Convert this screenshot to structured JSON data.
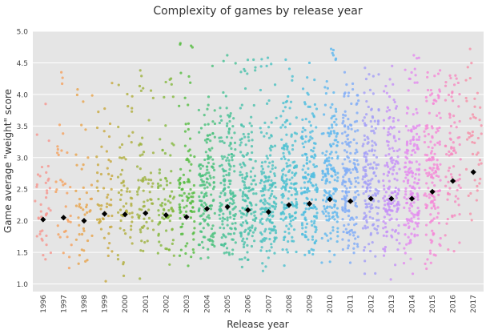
{
  "chart_data": {
    "type": "scatter",
    "title": "Complexity of games by release year",
    "xlabel": "Release year",
    "ylabel": "Game average \"weight\" score",
    "categories": [
      "1996",
      "1997",
      "1998",
      "1999",
      "2000",
      "2001",
      "2002",
      "2003",
      "2004",
      "2005",
      "2006",
      "2007",
      "2008",
      "2009",
      "2010",
      "2011",
      "2012",
      "2013",
      "2014",
      "2015",
      "2016",
      "2017"
    ],
    "y_ticks": [
      "1.0",
      "1.5",
      "2.0",
      "2.5",
      "3.0",
      "3.5",
      "4.0",
      "4.5",
      "5.0"
    ],
    "ylim": [
      0.88,
      5.0
    ],
    "grid": true,
    "mean_marker": "black diamond",
    "means": [
      2.02,
      2.05,
      2.0,
      2.11,
      2.1,
      2.12,
      2.09,
      2.06,
      2.19,
      2.22,
      2.17,
      2.14,
      2.25,
      2.27,
      2.34,
      2.31,
      2.35,
      2.35,
      2.35,
      2.46,
      2.63,
      2.77
    ],
    "point_counts": [
      40,
      35,
      45,
      55,
      60,
      70,
      80,
      100,
      150,
      160,
      160,
      165,
      165,
      165,
      170,
      170,
      160,
      160,
      170,
      150,
      80,
      45
    ],
    "max_values": [
      3.85,
      4.35,
      4.08,
      4.18,
      4.15,
      4.38,
      4.25,
      4.81,
      4.45,
      4.62,
      4.55,
      4.58,
      4.55,
      4.5,
      4.72,
      4.35,
      4.42,
      4.45,
      4.62,
      4.38,
      4.3,
      4.72
    ],
    "series_colors": [
      "#f6958d",
      "#f5a05d",
      "#e7a24a",
      "#c8a83c",
      "#b0ae3c",
      "#9db23d",
      "#85b83d",
      "#54bc3f",
      "#49c07a",
      "#46c194",
      "#47c1aa",
      "#48c0bf",
      "#4ac0d1",
      "#4ebde0",
      "#5db7ef",
      "#7eabf7",
      "#a49df8",
      "#c690f7",
      "#e489ef",
      "#f587d7",
      "#f68ac0",
      "#f68fa7"
    ],
    "point_alpha": 0.8,
    "background": "#e5e5e5",
    "grid_color": "#ffffff",
    "mean_color": "#000000"
  }
}
